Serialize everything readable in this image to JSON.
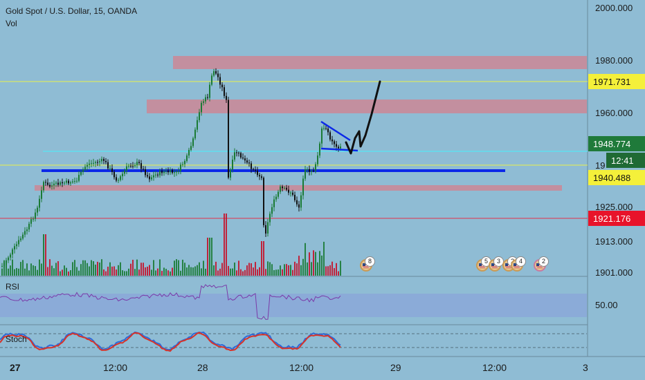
{
  "header": {
    "symbol_title": "Gold Spot / U.S. Dollar, 15, OANDA",
    "volume_label": "Vol"
  },
  "price_axis": {
    "ticks": [
      "2000.000",
      "1980.000",
      "1960.000",
      "1925.000",
      "1913.000",
      "1901.000"
    ],
    "partial_tick": "19",
    "rsi_tick": "50.00"
  },
  "price_tags": {
    "upper_yellow": "1971.731",
    "current": "1948.774",
    "countdown": "12:41",
    "lower_yellow": "1940.488",
    "red": "1921.176"
  },
  "time_axis": {
    "labels": [
      "27",
      "12:00",
      "28",
      "12:00",
      "29",
      "12:00",
      "3"
    ]
  },
  "indicators": {
    "rsi_label": "RSI",
    "stoch_label": "Stoch"
  },
  "events": [
    {
      "count": "8"
    },
    {
      "count": "5"
    },
    {
      "count": "3"
    },
    {
      "count": "2"
    },
    {
      "count": "4"
    },
    {
      "count": "2"
    }
  ],
  "colors": {
    "background": "#8fbcd4",
    "zone": "#c98a99",
    "support_line": "#0b28e8",
    "yellow_line": "#e8f04a",
    "cyan_line": "#5ee0f0",
    "red_line": "#e0304a",
    "bull": "#1a7a34",
    "bear": "#c4122a",
    "rsi_line": "#7a3aa8",
    "current_tag": "#1f7a3a"
  }
}
